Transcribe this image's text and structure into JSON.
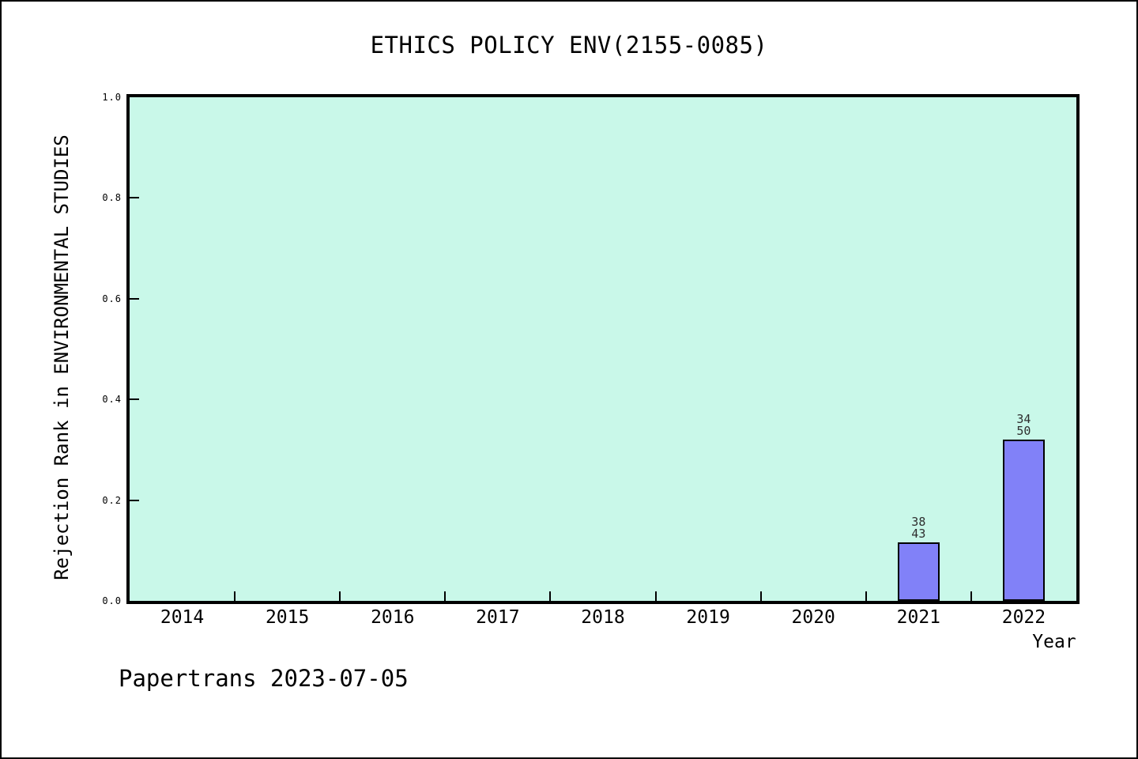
{
  "colors": {
    "plot_bg": "#c9f8e9",
    "bar_fill": "#8181f8",
    "axis": "#000000",
    "bar_label_text": "#2e2e2e"
  },
  "footer": {
    "watermark": "Papertrans 2023-07-05"
  },
  "chart_data": {
    "type": "bar",
    "title": "ETHICS POLICY ENV(2155-0085)",
    "xlabel": "Year",
    "ylabel": "Rejection Rank in ENVIRONMENTAL STUDIES",
    "categories": [
      "2014",
      "2015",
      "2016",
      "2017",
      "2018",
      "2019",
      "2020",
      "2021",
      "2022"
    ],
    "values": [
      null,
      null,
      null,
      null,
      null,
      null,
      null,
      0.116,
      0.32
    ],
    "point_labels": [
      null,
      null,
      null,
      null,
      null,
      null,
      null,
      [
        "38",
        "43"
      ],
      [
        "34",
        "50"
      ]
    ],
    "ylim": [
      0.0,
      1.0
    ],
    "yticks": [
      "0.0",
      "0.2",
      "0.4",
      "0.6",
      "0.8",
      "1.0"
    ],
    "grid": false,
    "legend": null,
    "bar_width_fraction": 0.4,
    "annotation": "Papertrans 2023-07-05"
  }
}
